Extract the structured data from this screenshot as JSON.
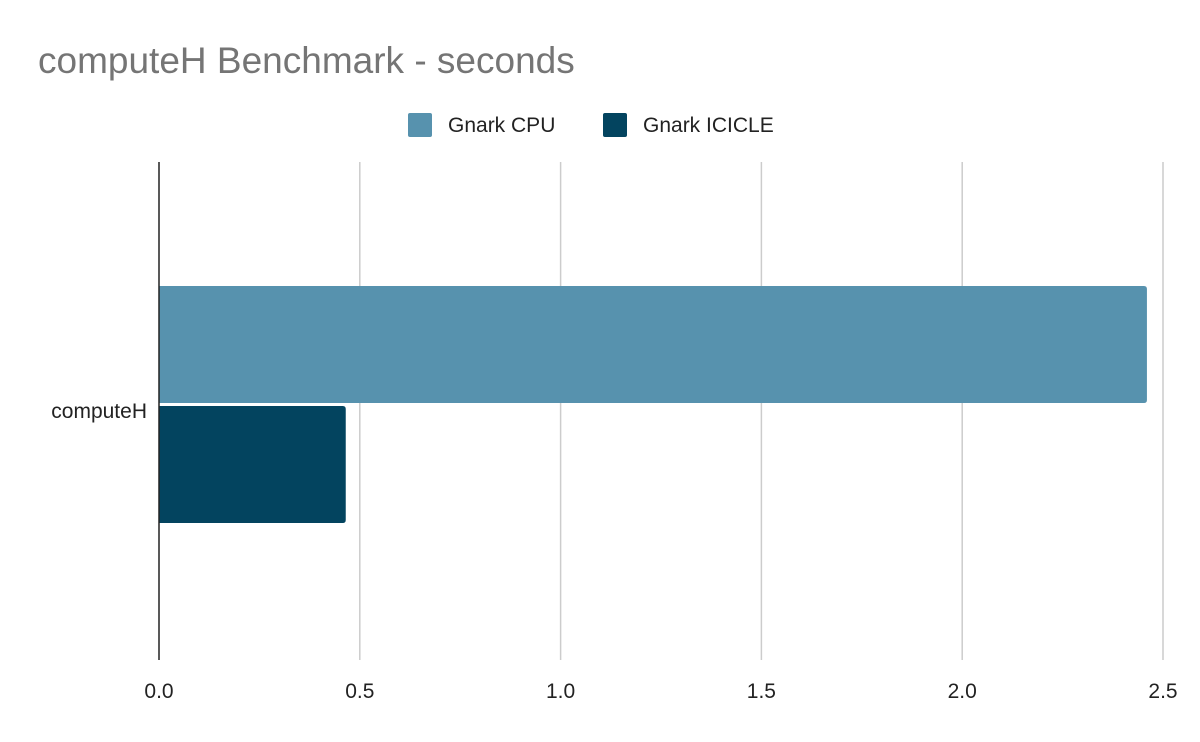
{
  "chart_data": {
    "type": "bar",
    "orientation": "horizontal",
    "title": "computeH Benchmark - seconds",
    "categories": [
      "computeH"
    ],
    "series": [
      {
        "name": "Gnark CPU",
        "values": [
          2.46
        ],
        "color": "#5792ae"
      },
      {
        "name": "Gnark ICICLE",
        "values": [
          0.465
        ],
        "color": "#03445f"
      }
    ],
    "xlim": [
      0,
      2.5
    ],
    "x_ticks": [
      "0.0",
      "0.5",
      "1.0",
      "1.5",
      "2.0",
      "2.5"
    ],
    "xlabel": "",
    "ylabel": "",
    "grid": true,
    "legend_position": "top-center"
  }
}
